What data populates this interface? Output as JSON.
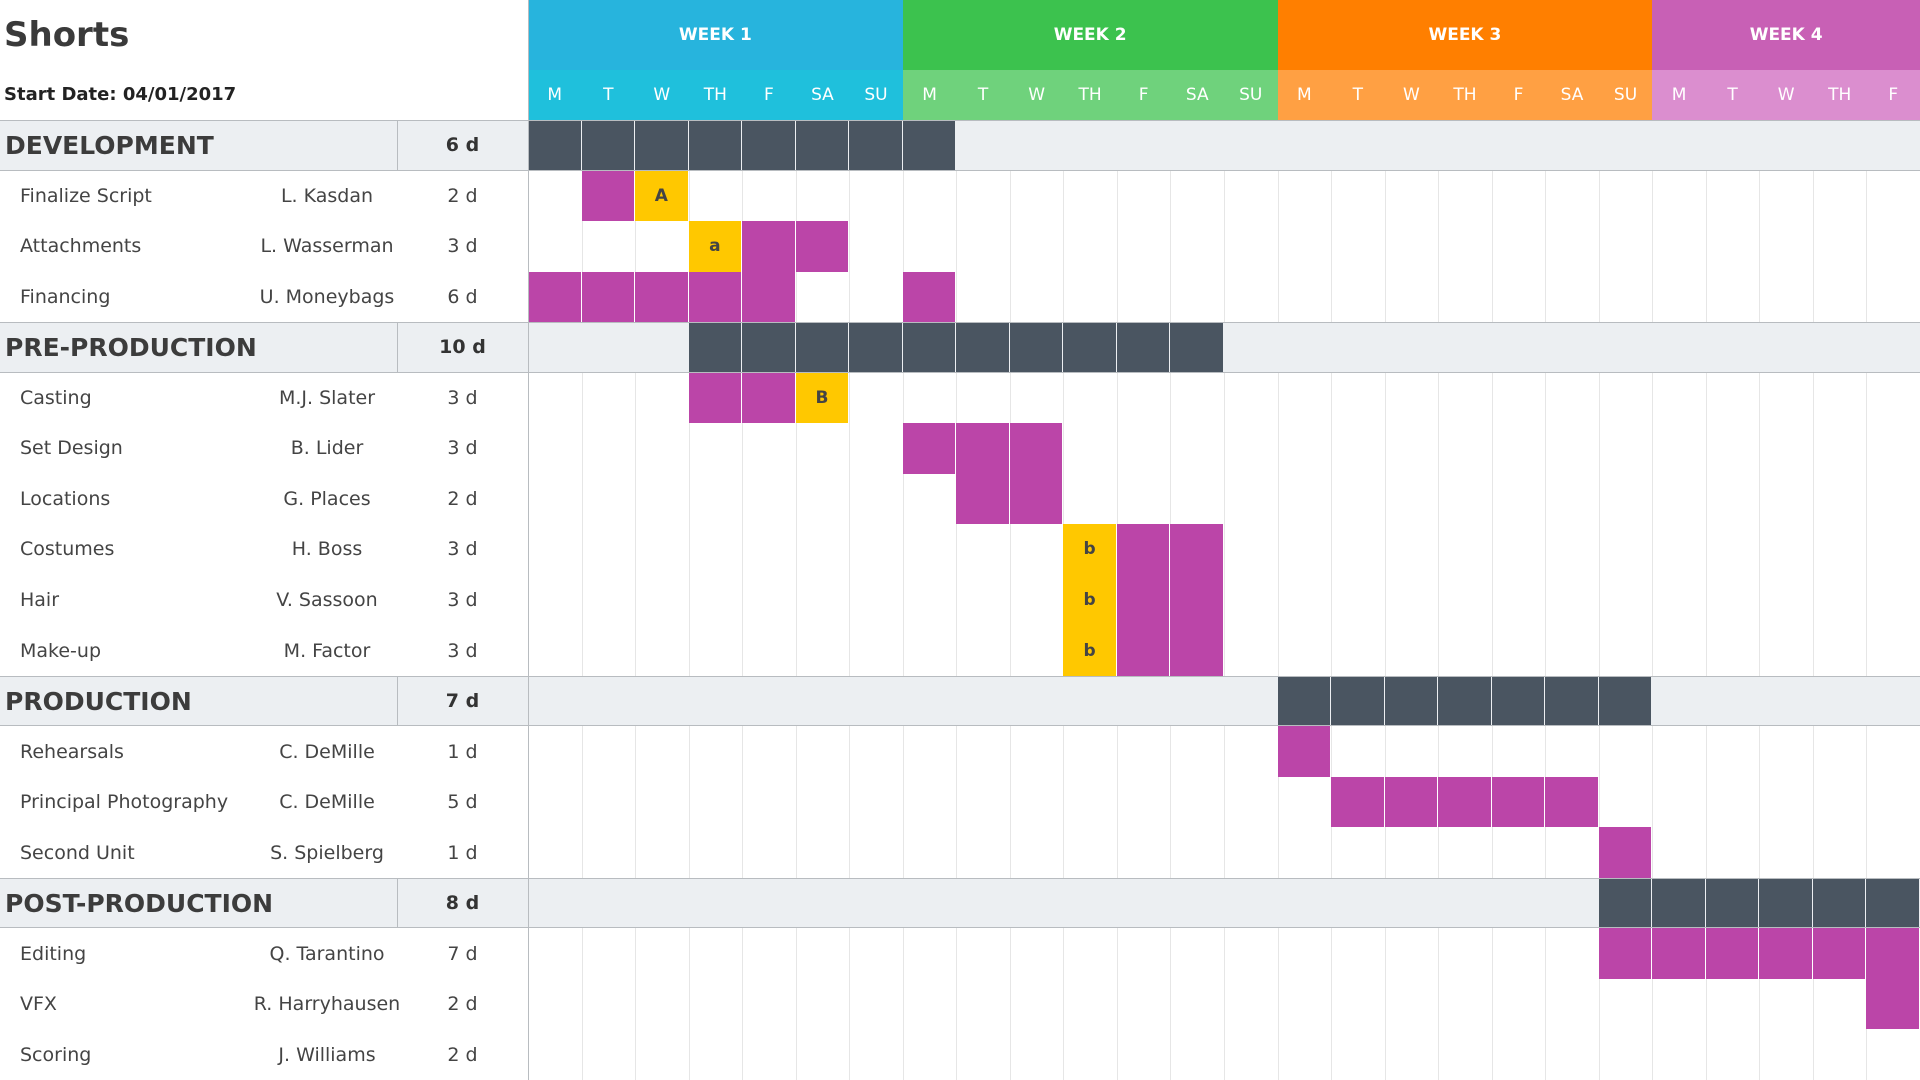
{
  "header": {
    "title": "Shorts",
    "start_date": "Start Date: 04/01/2017"
  },
  "weeks": [
    {
      "label": "WEEK 1",
      "days": [
        "M",
        "T",
        "W",
        "TH",
        "F",
        "SA",
        "SU"
      ]
    },
    {
      "label": "WEEK 2",
      "days": [
        "M",
        "T",
        "W",
        "TH",
        "F",
        "SA",
        "SU"
      ]
    },
    {
      "label": "WEEK 3",
      "days": [
        "M",
        "T",
        "W",
        "TH",
        "F",
        "SA",
        "SU"
      ]
    },
    {
      "label": "WEEK 4",
      "days": [
        "M",
        "T",
        "W",
        "TH",
        "F"
      ]
    }
  ],
  "sections": [
    {
      "name": "DEVELOPMENT",
      "duration": "6 d",
      "tasks": [
        {
          "name": "Finalize Script",
          "owner": "L. Kasdan",
          "duration": "2 d",
          "marker": "A"
        },
        {
          "name": "Attachments",
          "owner": "L. Wasserman",
          "duration": "3 d",
          "marker": "a"
        },
        {
          "name": "Financing",
          "owner": "U. Moneybags",
          "duration": "6 d"
        }
      ]
    },
    {
      "name": "PRE-PRODUCTION",
      "duration": "10 d",
      "tasks": [
        {
          "name": "Casting",
          "owner": "M.J. Slater",
          "duration": "3 d",
          "marker": "B"
        },
        {
          "name": "Set Design",
          "owner": "B. Lider",
          "duration": "3 d"
        },
        {
          "name": "Locations",
          "owner": "G. Places",
          "duration": "2 d"
        },
        {
          "name": "Costumes",
          "owner": "H. Boss",
          "duration": "3 d",
          "marker": "b"
        },
        {
          "name": "Hair",
          "owner": "V. Sassoon",
          "duration": "3 d",
          "marker": "b"
        },
        {
          "name": "Make-up",
          "owner": "M. Factor",
          "duration": "3 d",
          "marker": "b"
        }
      ]
    },
    {
      "name": "PRODUCTION",
      "duration": "7 d",
      "tasks": [
        {
          "name": "Rehearsals",
          "owner": "C. DeMille",
          "duration": "1 d"
        },
        {
          "name": "Principal Photography",
          "owner": "C. DeMille",
          "duration": "5 d"
        },
        {
          "name": "Second Unit",
          "owner": "S. Spielberg",
          "duration": "1 d"
        }
      ]
    },
    {
      "name": "POST-PRODUCTION",
      "duration": "8 d",
      "tasks": [
        {
          "name": "Editing",
          "owner": "Q. Tarantino",
          "duration": "7 d"
        },
        {
          "name": "VFX",
          "owner": "R. Harryhausen",
          "duration": "2 d"
        },
        {
          "name": "Scoring",
          "owner": "J. Williams",
          "duration": "2 d"
        }
      ]
    }
  ]
}
